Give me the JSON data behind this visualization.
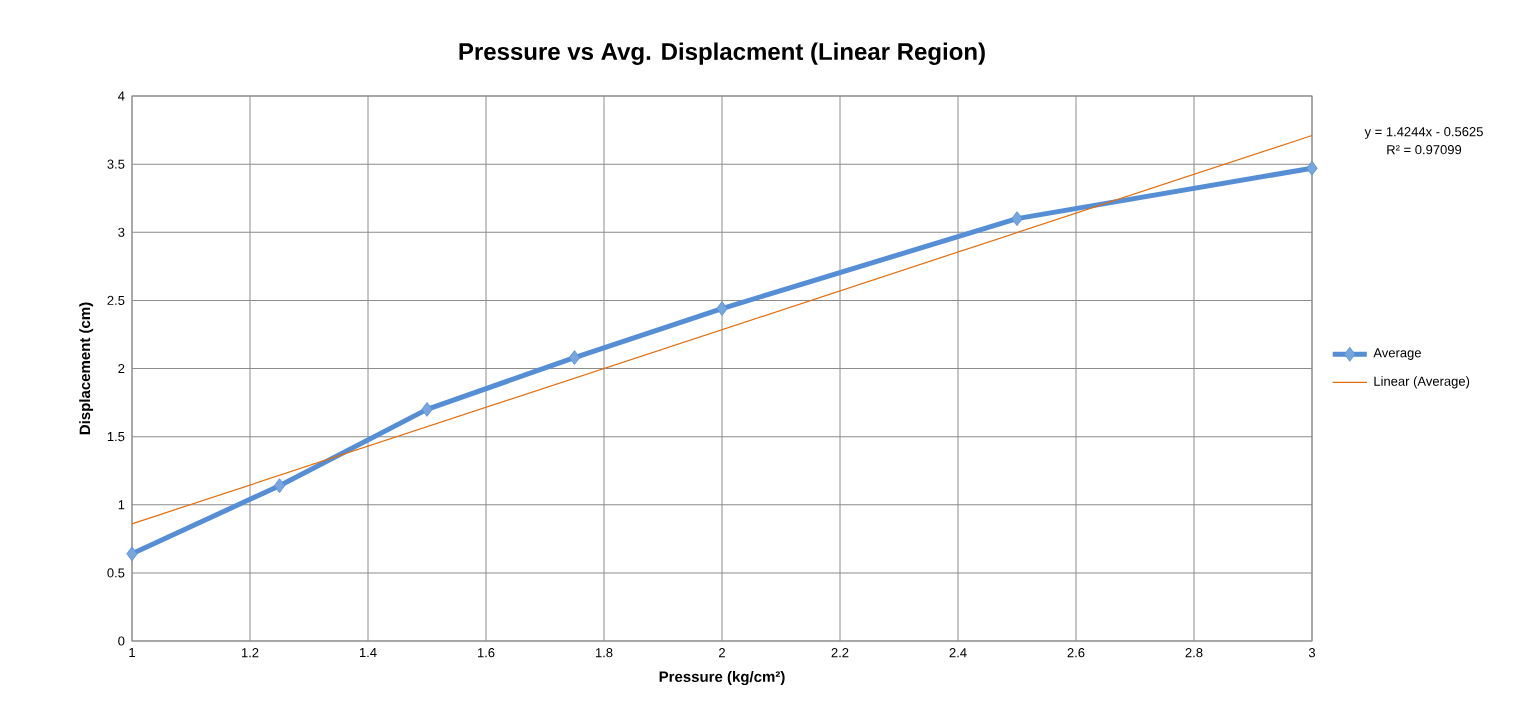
{
  "chart_data": {
    "type": "line",
    "title": "Pressure vs Avg. Displacment (Linear Region)",
    "xlabel": "Pressure (kg/cm²)",
    "ylabel": "Displacement (cm)",
    "xlim": [
      1,
      3
    ],
    "xticks": [
      1,
      1.2,
      1.4,
      1.6,
      1.8,
      2,
      2.2,
      2.4,
      2.6,
      2.8,
      3
    ],
    "ylim": [
      0,
      4
    ],
    "yticks": [
      0,
      0.5,
      1,
      1.5,
      2,
      2.5,
      3,
      3.5,
      4
    ],
    "grid": true,
    "legend": "right",
    "annotations": [
      "y = 1.4244x - 0.5625",
      "R² = 0.97099"
    ],
    "series": [
      {
        "name": "Average",
        "color": "#558ed5",
        "marker": "diamond",
        "x": [
          1,
          1.25,
          1.5,
          1.75,
          2,
          2.5,
          3
        ],
        "values": [
          0.64,
          1.14,
          1.7,
          2.08,
          2.44,
          3.1,
          3.47
        ]
      },
      {
        "name": "Linear (Average)",
        "type": "line",
        "color": "#e46c0a",
        "marker": "none",
        "x": [
          1,
          3
        ],
        "values": [
          0.86,
          3.71
        ]
      }
    ]
  }
}
